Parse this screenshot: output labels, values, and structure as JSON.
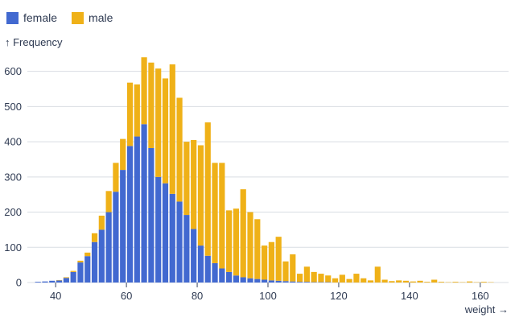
{
  "legend": {
    "items": [
      {
        "label": "female",
        "color": "#4269d0"
      },
      {
        "label": "male",
        "color": "#efb118"
      }
    ]
  },
  "chart_data": {
    "type": "bar",
    "subtype": "stacked-histogram",
    "title": "",
    "xlabel": "weight →",
    "ylabel": "↑ Frequency",
    "xlim": [
      32,
      168
    ],
    "ylim": [
      0,
      645
    ],
    "x_ticks": [
      40,
      60,
      80,
      100,
      120,
      140,
      160
    ],
    "y_ticks": [
      0,
      100,
      200,
      300,
      400,
      500,
      600
    ],
    "grid": "horizontal",
    "legend_position": "top-left",
    "bin_width": 2,
    "series_order": [
      "female",
      "male"
    ],
    "colors": {
      "female": "#4269d0",
      "male": "#efb118"
    },
    "bins": [
      {
        "x": 34,
        "female": 2,
        "male": 0
      },
      {
        "x": 36,
        "female": 3,
        "male": 0
      },
      {
        "x": 38,
        "female": 5,
        "male": 0
      },
      {
        "x": 40,
        "female": 6,
        "male": 1
      },
      {
        "x": 42,
        "female": 13,
        "male": 2
      },
      {
        "x": 44,
        "female": 30,
        "male": 3
      },
      {
        "x": 46,
        "female": 57,
        "male": 5
      },
      {
        "x": 48,
        "female": 75,
        "male": 10
      },
      {
        "x": 50,
        "female": 115,
        "male": 25
      },
      {
        "x": 52,
        "female": 150,
        "male": 40
      },
      {
        "x": 54,
        "female": 200,
        "male": 60
      },
      {
        "x": 56,
        "female": 258,
        "male": 82
      },
      {
        "x": 58,
        "female": 320,
        "male": 88
      },
      {
        "x": 60,
        "female": 388,
        "male": 180
      },
      {
        "x": 62,
        "female": 415,
        "male": 148
      },
      {
        "x": 64,
        "female": 450,
        "male": 190
      },
      {
        "x": 66,
        "female": 382,
        "male": 243
      },
      {
        "x": 68,
        "female": 300,
        "male": 308
      },
      {
        "x": 70,
        "female": 282,
        "male": 298
      },
      {
        "x": 72,
        "female": 252,
        "male": 368
      },
      {
        "x": 74,
        "female": 230,
        "male": 295
      },
      {
        "x": 76,
        "female": 192,
        "male": 208
      },
      {
        "x": 78,
        "female": 152,
        "male": 253
      },
      {
        "x": 80,
        "female": 105,
        "male": 285
      },
      {
        "x": 82,
        "female": 76,
        "male": 379
      },
      {
        "x": 84,
        "female": 55,
        "male": 285
      },
      {
        "x": 86,
        "female": 40,
        "male": 300
      },
      {
        "x": 88,
        "female": 30,
        "male": 175
      },
      {
        "x": 90,
        "female": 20,
        "male": 190
      },
      {
        "x": 92,
        "female": 15,
        "male": 250
      },
      {
        "x": 94,
        "female": 12,
        "male": 188
      },
      {
        "x": 96,
        "female": 10,
        "male": 170
      },
      {
        "x": 98,
        "female": 8,
        "male": 97
      },
      {
        "x": 100,
        "female": 6,
        "male": 109
      },
      {
        "x": 102,
        "female": 5,
        "male": 125
      },
      {
        "x": 104,
        "female": 4,
        "male": 56
      },
      {
        "x": 106,
        "female": 3,
        "male": 77
      },
      {
        "x": 108,
        "female": 2,
        "male": 23
      },
      {
        "x": 110,
        "female": 2,
        "male": 43
      },
      {
        "x": 112,
        "female": 1,
        "male": 29
      },
      {
        "x": 114,
        "female": 1,
        "male": 24
      },
      {
        "x": 116,
        "female": 1,
        "male": 19
      },
      {
        "x": 118,
        "female": 0,
        "male": 12
      },
      {
        "x": 120,
        "female": 0,
        "male": 22
      },
      {
        "x": 122,
        "female": 0,
        "male": 10
      },
      {
        "x": 124,
        "female": 0,
        "male": 25
      },
      {
        "x": 126,
        "female": 0,
        "male": 12
      },
      {
        "x": 128,
        "female": 0,
        "male": 6
      },
      {
        "x": 130,
        "female": 0,
        "male": 45
      },
      {
        "x": 132,
        "female": 0,
        "male": 8
      },
      {
        "x": 134,
        "female": 0,
        "male": 4
      },
      {
        "x": 136,
        "female": 0,
        "male": 6
      },
      {
        "x": 138,
        "female": 0,
        "male": 5
      },
      {
        "x": 140,
        "female": 0,
        "male": 3
      },
      {
        "x": 142,
        "female": 0,
        "male": 5
      },
      {
        "x": 144,
        "female": 0,
        "male": 2
      },
      {
        "x": 146,
        "female": 0,
        "male": 8
      },
      {
        "x": 148,
        "female": 0,
        "male": 2
      },
      {
        "x": 150,
        "female": 0,
        "male": 1
      },
      {
        "x": 152,
        "female": 0,
        "male": 2
      },
      {
        "x": 154,
        "female": 0,
        "male": 1
      },
      {
        "x": 156,
        "female": 0,
        "male": 3
      },
      {
        "x": 158,
        "female": 0,
        "male": 1
      },
      {
        "x": 160,
        "female": 0,
        "male": 2
      },
      {
        "x": 162,
        "female": 0,
        "male": 1
      }
    ]
  }
}
